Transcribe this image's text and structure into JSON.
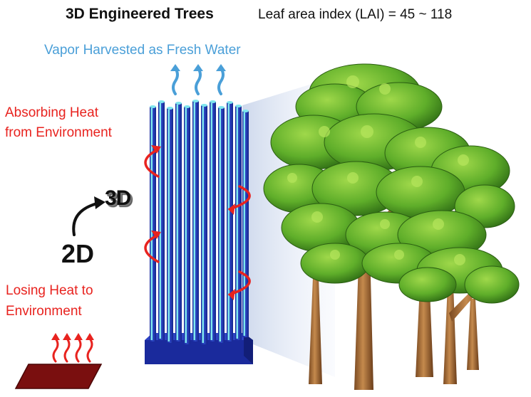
{
  "header": {
    "title": "3D Engineered Trees",
    "subtitle": "Leaf area index (LAI) = 45 ~ 118"
  },
  "labels": {
    "vapor": "Vapor Harvested as Fresh Water",
    "absorbing_line1": "Absorbing Heat",
    "absorbing_line2": "from Environment",
    "losing_line1": "Losing Heat to",
    "losing_line2": "Environment",
    "dim_3d": "3D",
    "dim_2d": "2D"
  },
  "colors": {
    "text": "#111111",
    "heat_red": "#e8231f",
    "vapor_blue": "#4a9fd8",
    "column_blue": "#1e2fa8",
    "rod_cyan": "#7fe6ee",
    "base_navy": "#1a2a9c",
    "flat_sheet": "#7a0f0f",
    "foliage": "#5fae2a",
    "trunk": "#b0773f"
  },
  "icons": [
    "vapor-arrow-icon",
    "heat-arrow-icon",
    "curved-arrow-icon",
    "tree-icon"
  ]
}
